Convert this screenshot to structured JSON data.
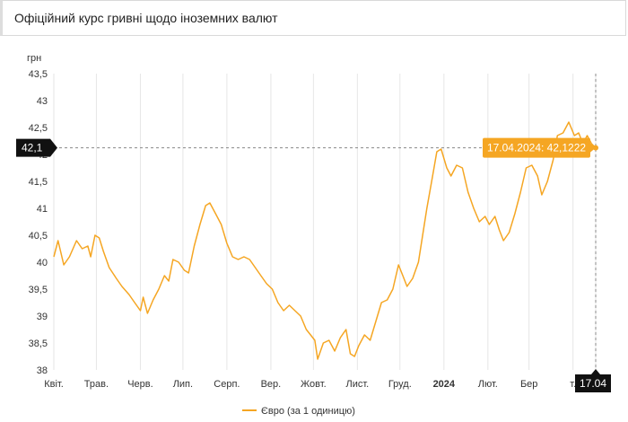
{
  "header": {
    "title": "Офіційний курс гривні щодо іноземних валют"
  },
  "chart_data": {
    "type": "line",
    "ylabel": "грн",
    "ylim": [
      38,
      43.5
    ],
    "yticks": [
      "38",
      "38,5",
      "39",
      "39,5",
      "40",
      "40,5",
      "41",
      "41,5",
      "42",
      "42,5",
      "43",
      "43,5"
    ],
    "yticks_values": [
      38,
      38.5,
      39,
      39.5,
      40,
      40.5,
      41,
      41.5,
      42,
      42.5,
      43,
      43.5
    ],
    "xlim": [
      "2023-04-01",
      "2024-04-17"
    ],
    "xticks": [
      {
        "date": "2023-04-01",
        "label": "Квіт.",
        "bold": false
      },
      {
        "date": "2023-05-01",
        "label": "Трав.",
        "bold": false
      },
      {
        "date": "2023-06-01",
        "label": "Черв.",
        "bold": false
      },
      {
        "date": "2023-07-01",
        "label": "Лип.",
        "bold": false
      },
      {
        "date": "2023-08-01",
        "label": "Серп.",
        "bold": false
      },
      {
        "date": "2023-09-01",
        "label": "Вер.",
        "bold": false
      },
      {
        "date": "2023-10-01",
        "label": "Жовт.",
        "bold": false
      },
      {
        "date": "2023-11-01",
        "label": "Лист.",
        "bold": false
      },
      {
        "date": "2023-12-01",
        "label": "Груд.",
        "bold": false
      },
      {
        "date": "2024-01-01",
        "label": "2024",
        "bold": true
      },
      {
        "date": "2024-02-01",
        "label": "Лют.",
        "bold": false
      },
      {
        "date": "2024-03-01",
        "label": "Бер",
        "bold": false
      },
      {
        "date": "2024-04-01",
        "label": "т.",
        "bold": false
      }
    ],
    "series": [
      {
        "name": "Євро (за 1 одиницю)",
        "color": "#f5a623",
        "points": [
          [
            "2023-04-01",
            40.1
          ],
          [
            "2023-04-04",
            40.4
          ],
          [
            "2023-04-08",
            39.95
          ],
          [
            "2023-04-12",
            40.1
          ],
          [
            "2023-04-17",
            40.4
          ],
          [
            "2023-04-21",
            40.25
          ],
          [
            "2023-04-25",
            40.3
          ],
          [
            "2023-04-27",
            40.1
          ],
          [
            "2023-04-30",
            40.5
          ],
          [
            "2023-05-03",
            40.45
          ],
          [
            "2023-05-06",
            40.2
          ],
          [
            "2023-05-10",
            39.9
          ],
          [
            "2023-05-15",
            39.7
          ],
          [
            "2023-05-19",
            39.55
          ],
          [
            "2023-05-24",
            39.4
          ],
          [
            "2023-05-28",
            39.25
          ],
          [
            "2023-06-01",
            39.1
          ],
          [
            "2023-06-03",
            39.35
          ],
          [
            "2023-06-06",
            39.05
          ],
          [
            "2023-06-10",
            39.3
          ],
          [
            "2023-06-14",
            39.5
          ],
          [
            "2023-06-18",
            39.75
          ],
          [
            "2023-06-21",
            39.65
          ],
          [
            "2023-06-24",
            40.05
          ],
          [
            "2023-06-28",
            40.0
          ],
          [
            "2023-07-02",
            39.85
          ],
          [
            "2023-07-05",
            39.8
          ],
          [
            "2023-07-09",
            40.3
          ],
          [
            "2023-07-13",
            40.7
          ],
          [
            "2023-07-17",
            41.05
          ],
          [
            "2023-07-20",
            41.1
          ],
          [
            "2023-07-24",
            40.9
          ],
          [
            "2023-07-28",
            40.7
          ],
          [
            "2023-08-01",
            40.35
          ],
          [
            "2023-08-05",
            40.1
          ],
          [
            "2023-08-09",
            40.05
          ],
          [
            "2023-08-13",
            40.1
          ],
          [
            "2023-08-17",
            40.05
          ],
          [
            "2023-08-21",
            39.9
          ],
          [
            "2023-08-25",
            39.75
          ],
          [
            "2023-08-29",
            39.6
          ],
          [
            "2023-09-02",
            39.5
          ],
          [
            "2023-09-06",
            39.25
          ],
          [
            "2023-09-10",
            39.1
          ],
          [
            "2023-09-14",
            39.2
          ],
          [
            "2023-09-18",
            39.1
          ],
          [
            "2023-09-22",
            39.0
          ],
          [
            "2023-09-26",
            38.75
          ],
          [
            "2023-09-29",
            38.65
          ],
          [
            "2023-10-02",
            38.55
          ],
          [
            "2023-10-04",
            38.2
          ],
          [
            "2023-10-08",
            38.5
          ],
          [
            "2023-10-12",
            38.55
          ],
          [
            "2023-10-16",
            38.35
          ],
          [
            "2023-10-20",
            38.6
          ],
          [
            "2023-10-24",
            38.75
          ],
          [
            "2023-10-27",
            38.3
          ],
          [
            "2023-10-30",
            38.25
          ],
          [
            "2023-11-02",
            38.45
          ],
          [
            "2023-11-06",
            38.65
          ],
          [
            "2023-11-10",
            38.55
          ],
          [
            "2023-11-14",
            38.9
          ],
          [
            "2023-11-18",
            39.25
          ],
          [
            "2023-11-22",
            39.3
          ],
          [
            "2023-11-26",
            39.5
          ],
          [
            "2023-11-30",
            39.95
          ],
          [
            "2023-12-03",
            39.75
          ],
          [
            "2023-12-06",
            39.55
          ],
          [
            "2023-12-10",
            39.7
          ],
          [
            "2023-12-14",
            40.0
          ],
          [
            "2023-12-17",
            40.5
          ],
          [
            "2023-12-20",
            41.0
          ],
          [
            "2023-12-24",
            41.6
          ],
          [
            "2023-12-27",
            42.05
          ],
          [
            "2023-12-30",
            42.1
          ],
          [
            "2024-01-03",
            41.75
          ],
          [
            "2024-01-06",
            41.6
          ],
          [
            "2024-01-10",
            41.8
          ],
          [
            "2024-01-14",
            41.75
          ],
          [
            "2024-01-18",
            41.3
          ],
          [
            "2024-01-22",
            41.0
          ],
          [
            "2024-01-26",
            40.75
          ],
          [
            "2024-01-30",
            40.85
          ],
          [
            "2024-02-02",
            40.7
          ],
          [
            "2024-02-06",
            40.85
          ],
          [
            "2024-02-09",
            40.6
          ],
          [
            "2024-02-12",
            40.4
          ],
          [
            "2024-02-16",
            40.55
          ],
          [
            "2024-02-20",
            40.9
          ],
          [
            "2024-02-24",
            41.3
          ],
          [
            "2024-02-28",
            41.75
          ],
          [
            "2024-03-03",
            41.8
          ],
          [
            "2024-03-07",
            41.6
          ],
          [
            "2024-03-10",
            41.25
          ],
          [
            "2024-03-14",
            41.5
          ],
          [
            "2024-03-18",
            41.9
          ],
          [
            "2024-03-21",
            42.35
          ],
          [
            "2024-03-25",
            42.4
          ],
          [
            "2024-03-29",
            42.6
          ],
          [
            "2024-04-02",
            42.35
          ],
          [
            "2024-04-05",
            42.4
          ],
          [
            "2024-04-08",
            42.2
          ],
          [
            "2024-04-11",
            42.35
          ],
          [
            "2024-04-14",
            42.2
          ],
          [
            "2024-04-17",
            42.1222
          ]
        ]
      }
    ],
    "crosshair": {
      "date_label": "17.04",
      "value_label": "42,1",
      "value": 42.1222,
      "tooltip": "17.04.2024: 42,1222"
    },
    "grid": "vertical",
    "legend_position": "bottom"
  }
}
